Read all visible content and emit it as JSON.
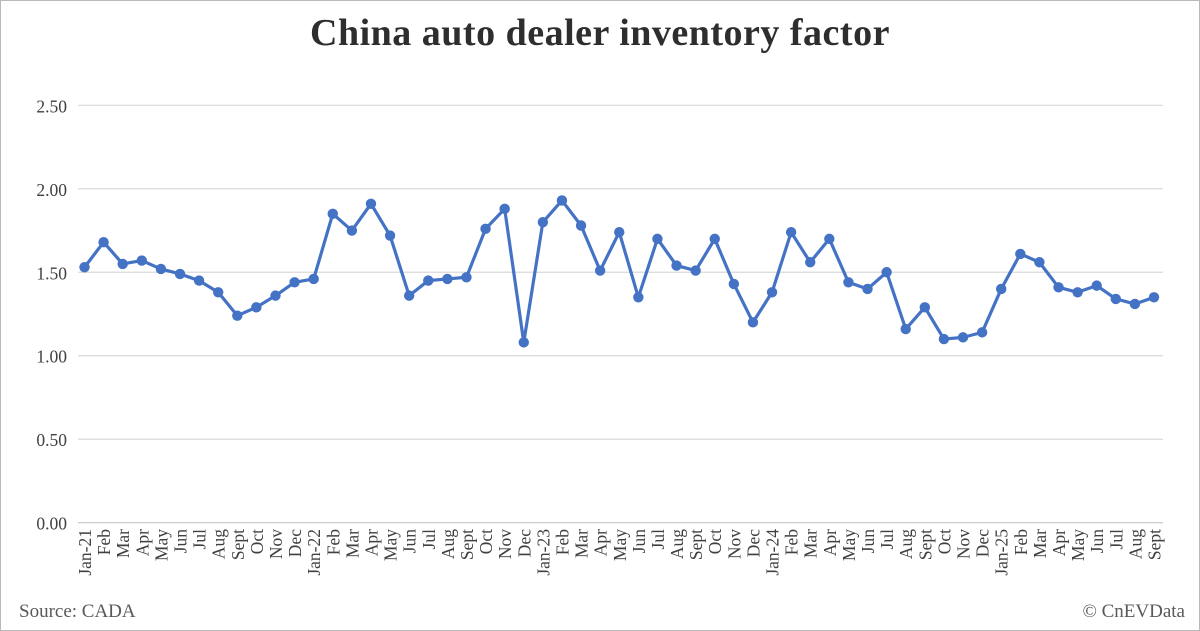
{
  "title": "China auto dealer inventory factor",
  "footer": {
    "source": "Source: CADA",
    "credit": "© CnEVData"
  },
  "chart_data": {
    "type": "line",
    "title": "China auto dealer inventory factor",
    "series_name": "inventory factor",
    "categories": [
      "Jan-21",
      "Feb",
      "Mar",
      "Apr",
      "May",
      "Jun",
      "Jul",
      "Aug",
      "Sept",
      "Oct",
      "Nov",
      "Dec",
      "Jan-22",
      "Feb",
      "Mar",
      "Apr",
      "May",
      "Jun",
      "Jul",
      "Aug",
      "Sept",
      "Oct",
      "Nov",
      "Dec",
      "Jan-23",
      "Feb",
      "Mar",
      "Apr",
      "May",
      "Jun",
      "Jul",
      "Aug",
      "Sept",
      "Oct",
      "Nov",
      "Dec",
      "Jan-24",
      "Feb",
      "Mar",
      "Apr",
      "May",
      "Jun",
      "Jul",
      "Aug",
      "Sept",
      "Oct",
      "Nov",
      "Dec",
      "Jan-25",
      "Feb",
      "Mar",
      "Apr",
      "May",
      "Jun",
      "Jul",
      "Aug",
      "Sept"
    ],
    "values": [
      1.53,
      1.68,
      1.55,
      1.57,
      1.52,
      1.49,
      1.45,
      1.38,
      1.24,
      1.29,
      1.36,
      1.44,
      1.46,
      1.85,
      1.75,
      1.91,
      1.72,
      1.36,
      1.45,
      1.46,
      1.47,
      1.76,
      1.88,
      1.08,
      1.8,
      1.93,
      1.78,
      1.51,
      1.74,
      1.35,
      1.7,
      1.54,
      1.51,
      1.7,
      1.43,
      1.2,
      1.38,
      1.74,
      1.56,
      1.7,
      1.44,
      1.4,
      1.5,
      1.16,
      1.29,
      1.1,
      1.11,
      1.14,
      1.4,
      1.61,
      1.56,
      1.41,
      1.38,
      1.42,
      1.34,
      1.31,
      1.35
    ],
    "xlabel": "",
    "ylabel": "",
    "ylim": [
      0.0,
      2.5
    ],
    "yticks": [
      0.0,
      0.5,
      1.0,
      1.5,
      2.0,
      2.5
    ],
    "ytick_decimals": 2,
    "grid": true,
    "legend": "none",
    "line_color": "#4472C4",
    "marker_color": "#4472C4",
    "gridline_color": "#D9D9D9",
    "axis_line_color": "#C6C6C6",
    "tick_label_color": "#404040"
  }
}
